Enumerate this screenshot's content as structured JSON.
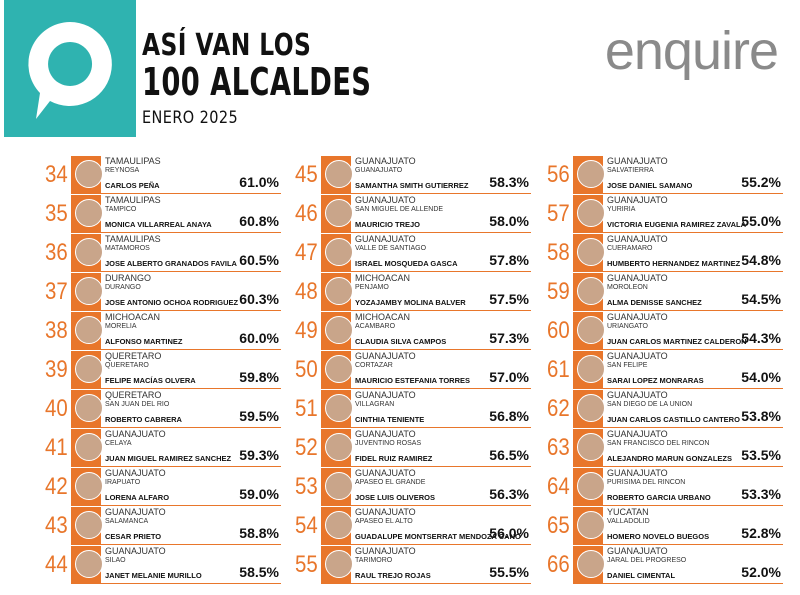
{
  "header": {
    "title_line1": "ASÍ VAN LOS",
    "title_line2": "100 ALCALDES",
    "subtitle": "ENERO 2025",
    "brand": "enquire"
  },
  "columns": [
    [
      {
        "rank": "34",
        "state": "TAMAULIPAS",
        "municipality": "REYNOSA",
        "name": "CARLOS PEÑA",
        "approval": "61.0%"
      },
      {
        "rank": "35",
        "state": "TAMAULIPAS",
        "municipality": "TAMPICO",
        "name": "MONICA VILLARREAL ANAYA",
        "approval": "60.8%"
      },
      {
        "rank": "36",
        "state": "TAMAULIPAS",
        "municipality": "MATAMOROS",
        "name": "JOSE ALBERTO GRANADOS FAVILA",
        "approval": "60.5%"
      },
      {
        "rank": "37",
        "state": "DURANGO",
        "municipality": "DURANGO",
        "name": "JOSE ANTONIO OCHOA RODRIGUEZ",
        "approval": "60.3%"
      },
      {
        "rank": "38",
        "state": "MICHOACAN",
        "municipality": "MORELIA",
        "name": "ALFONSO MARTINEZ",
        "approval": "60.0%"
      },
      {
        "rank": "39",
        "state": "QUERETARO",
        "municipality": "QUERETARO",
        "name": "FELIPE MACÍAS OLVERA",
        "approval": "59.8%"
      },
      {
        "rank": "40",
        "state": "QUERETARO",
        "municipality": "SAN JUAN DEL RIO",
        "name": "ROBERTO CABRERA",
        "approval": "59.5%"
      },
      {
        "rank": "41",
        "state": "GUANAJUATO",
        "municipality": "CELAYA",
        "name": "JUAN MIGUEL RAMIREZ SANCHEZ",
        "approval": "59.3%"
      },
      {
        "rank": "42",
        "state": "GUANAJUATO",
        "municipality": "IRAPUATO",
        "name": "LORENA ALFARO",
        "approval": "59.0%"
      },
      {
        "rank": "43",
        "state": "GUANAJUATO",
        "municipality": "SALAMANCA",
        "name": "CESAR PRIETO",
        "approval": "58.8%"
      },
      {
        "rank": "44",
        "state": "GUANAJUATO",
        "municipality": "SILAO",
        "name": "JANET MELANIE MURILLO",
        "approval": "58.5%"
      }
    ],
    [
      {
        "rank": "45",
        "state": "GUANAJUATO",
        "municipality": "GUANAJUATO",
        "name": "SAMANTHA SMITH GUTIERREZ",
        "approval": "58.3%"
      },
      {
        "rank": "46",
        "state": "GUANAJUATO",
        "municipality": "SAN MIGUEL DE ALLENDE",
        "name": "MAURICIO TREJO",
        "approval": "58.0%"
      },
      {
        "rank": "47",
        "state": "GUANAJUATO",
        "municipality": "VALLE DE SANTIAGO",
        "name": "ISRAEL MOSQUEDA GASCA",
        "approval": "57.8%"
      },
      {
        "rank": "48",
        "state": "MICHOACAN",
        "municipality": "PENJAMO",
        "name": "YOZAJAMBY MOLINA BALVER",
        "approval": "57.5%"
      },
      {
        "rank": "49",
        "state": "MICHOACAN",
        "municipality": "ACAMBARO",
        "name": "CLAUDIA SILVA CAMPOS",
        "approval": "57.3%"
      },
      {
        "rank": "50",
        "state": "GUANAJUATO",
        "municipality": "CORTAZAR",
        "name": "MAURICIO ESTEFANIA TORRES",
        "approval": "57.0%"
      },
      {
        "rank": "51",
        "state": "GUANAJUATO",
        "municipality": "VILLAGRAN",
        "name": "CINTHIA TENIENTE",
        "approval": "56.8%"
      },
      {
        "rank": "52",
        "state": "GUANAJUATO",
        "municipality": "JUVENTINO ROSAS",
        "name": "FIDEL RUIZ RAMIREZ",
        "approval": "56.5%"
      },
      {
        "rank": "53",
        "state": "GUANAJUATO",
        "municipality": "APASEO EL GRANDE",
        "name": "JOSE LUIS OLIVEROS",
        "approval": "56.3%"
      },
      {
        "rank": "54",
        "state": "GUANAJUATO",
        "municipality": "APASEO EL ALTO",
        "name": "GUADALUPE MONTSERRAT MENDOZA CANO",
        "approval": "56.0%"
      },
      {
        "rank": "55",
        "state": "GUANAJUATO",
        "municipality": "TARIMORO",
        "name": "RAUL TREJO ROJAS",
        "approval": "55.5%"
      }
    ],
    [
      {
        "rank": "56",
        "state": "GUANAJUATO",
        "municipality": "SALVATIERRA",
        "name": "JOSE DANIEL SAMANO",
        "approval": "55.2%"
      },
      {
        "rank": "57",
        "state": "GUANAJUATO",
        "municipality": "YURIRIA",
        "name": "VICTORIA EUGENIA RAMIREZ ZAVALA",
        "approval": "55.0%"
      },
      {
        "rank": "58",
        "state": "GUANAJUATO",
        "municipality": "CUERAMARO",
        "name": "HUMBERTO HERNANDEZ MARTINEZ",
        "approval": "54.8%"
      },
      {
        "rank": "59",
        "state": "GUANAJUATO",
        "municipality": "MOROLEON",
        "name": "ALMA DENISSE SANCHEZ",
        "approval": "54.5%"
      },
      {
        "rank": "60",
        "state": "GUANAJUATO",
        "municipality": "URIANGATO",
        "name": "JUAN CARLOS MARTINEZ CALDERON",
        "approval": "54.3%"
      },
      {
        "rank": "61",
        "state": "GUANAJUATO",
        "municipality": "SAN FELIPE",
        "name": "SARAI LOPEZ MONRARAS",
        "approval": "54.0%"
      },
      {
        "rank": "62",
        "state": "GUANAJUATO",
        "municipality": "SAN DIEGO DE LA UNION",
        "name": "JUAN CARLOS CASTILLO CANTERO",
        "approval": "53.8%"
      },
      {
        "rank": "63",
        "state": "GUANAJUATO",
        "municipality": "SAN FRANCISCO DEL RINCON",
        "name": "ALEJANDRO MARUN GONZALEZS",
        "approval": "53.5%"
      },
      {
        "rank": "64",
        "state": "GUANAJUATO",
        "municipality": "PURISIMA DEL RINCON",
        "name": "ROBERTO GARCIA URBANO",
        "approval": "53.3%"
      },
      {
        "rank": "65",
        "state": "YUCATAN",
        "municipality": "VALLADOLID",
        "name": "HOMERO NOVELO BUEGOS",
        "approval": "52.8%"
      },
      {
        "rank": "66",
        "state": "GUANAJUATO",
        "municipality": "JARAL DEL PROGRESO",
        "name": "DANIEL CIMENTAL",
        "approval": "52.0%"
      }
    ]
  ]
}
